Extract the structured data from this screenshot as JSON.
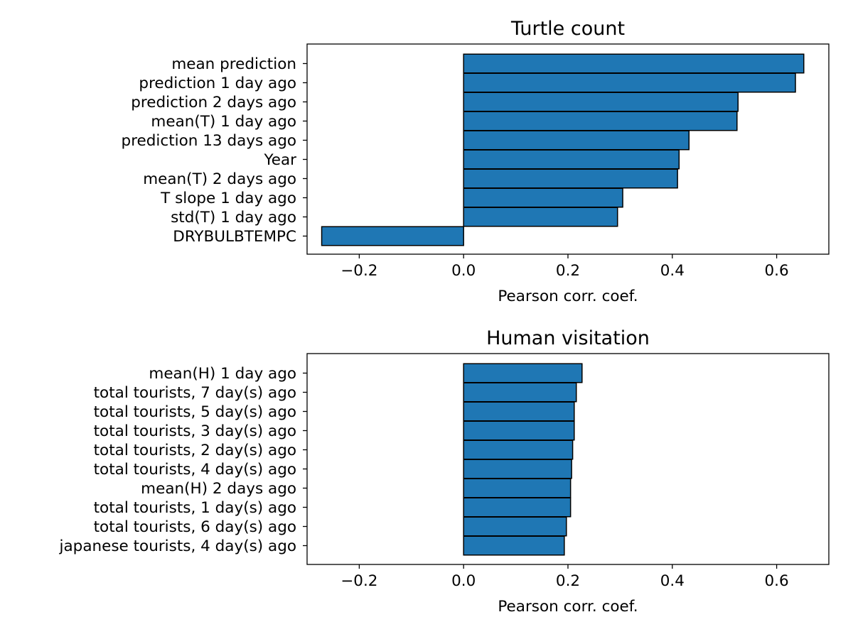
{
  "colors": {
    "bar_fill": "#1f77b4",
    "bar_edge": "#000000",
    "axis": "#000000",
    "background": "#ffffff"
  },
  "chart_data": [
    {
      "type": "bar",
      "orientation": "horizontal",
      "title": "Turtle count",
      "xlabel": "Pearson corr. coef.",
      "ylabel": "",
      "xlim": [
        -0.3,
        0.7
      ],
      "xticks": [
        -0.2,
        0.0,
        0.2,
        0.4,
        0.6
      ],
      "xtick_labels": [
        "−0.2",
        "0.0",
        "0.2",
        "0.4",
        "0.6"
      ],
      "grid": false,
      "categories": [
        "mean prediction",
        "prediction 1 day ago",
        "prediction 2 days ago",
        "mean(T) 1 day ago",
        "prediction 13 days ago",
        "Year",
        "mean(T) 2 days ago",
        "T slope 1 day ago",
        "std(T) 1 day ago",
        "DRYBULBTEMPC"
      ],
      "values": [
        0.652,
        0.636,
        0.526,
        0.524,
        0.432,
        0.413,
        0.41,
        0.305,
        0.295,
        -0.272
      ]
    },
    {
      "type": "bar",
      "orientation": "horizontal",
      "title": "Human visitation",
      "xlabel": "Pearson corr. coef.",
      "ylabel": "",
      "xlim": [
        -0.3,
        0.7
      ],
      "xticks": [
        -0.2,
        0.0,
        0.2,
        0.4,
        0.6
      ],
      "xtick_labels": [
        "−0.2",
        "0.0",
        "0.2",
        "0.4",
        "0.6"
      ],
      "grid": false,
      "categories": [
        "mean(H) 1 day ago",
        "total tourists, 7 day(s) ago",
        "total tourists, 5 day(s) ago",
        "total tourists, 3 day(s) ago",
        "total tourists, 2 day(s) ago",
        "total tourists, 4 day(s) ago",
        "mean(H) 2 days ago",
        "total tourists, 1 day(s) ago",
        "total tourists, 6 day(s) ago",
        "japanese tourists, 4 day(s) ago"
      ],
      "values": [
        0.227,
        0.216,
        0.212,
        0.212,
        0.209,
        0.207,
        0.205,
        0.205,
        0.197,
        0.193
      ]
    }
  ]
}
